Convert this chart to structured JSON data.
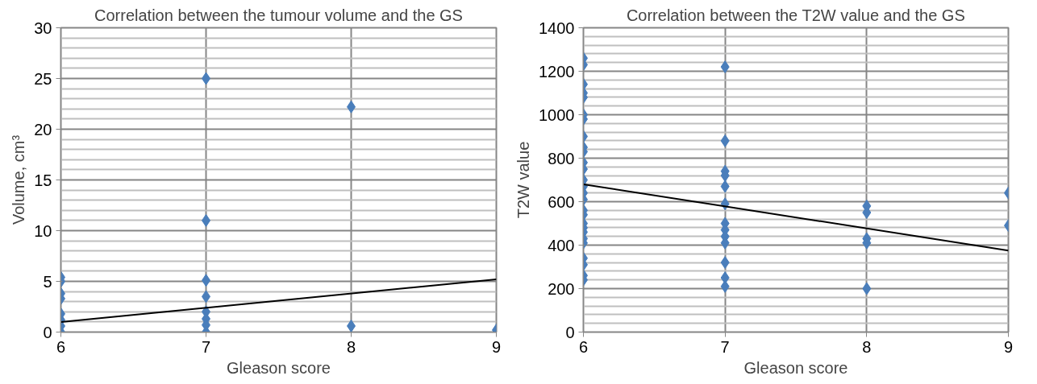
{
  "chart_data": [
    {
      "type": "scatter",
      "title": "Correlation between the tumour volume and the GS",
      "xlabel": "Gleason score",
      "ylabel": "Volume, cm³",
      "xlim": [
        6,
        9
      ],
      "xticks": [
        6,
        7,
        8,
        9
      ],
      "ylim": [
        0,
        30
      ],
      "yticks": [
        0,
        5,
        10,
        15,
        20,
        25,
        30
      ],
      "grid": true,
      "marker": "diamond",
      "series": [
        {
          "color": "#4a7ebb",
          "x": [
            6,
            6,
            6,
            6,
            6,
            6,
            6,
            6,
            7,
            7,
            7,
            7,
            7,
            7,
            7,
            7,
            8,
            8,
            9
          ],
          "values": [
            5.4,
            5.0,
            3.8,
            3.3,
            1.8,
            1.2,
            0.6,
            0,
            25,
            11,
            5.1,
            3.5,
            2.0,
            1.3,
            0.7,
            0,
            22.2,
            0.6,
            0.2
          ]
        },
        {
          "type": "line",
          "marker": "none",
          "color": "#000000",
          "x": [
            6,
            9
          ],
          "values": [
            1.0,
            5.2
          ]
        }
      ]
    },
    {
      "type": "scatter",
      "title": "Correlation between the T2W value and the GS",
      "xlabel": "Gleason score",
      "ylabel": "T2W value",
      "xlim": [
        6,
        9
      ],
      "xticks": [
        6,
        7,
        8,
        9
      ],
      "ylim": [
        0,
        1400
      ],
      "yticks": [
        0,
        200,
        400,
        600,
        800,
        1000,
        1200,
        1400
      ],
      "grid": true,
      "marker": "diamond",
      "series": [
        {
          "color": "#4a7ebb",
          "x": [
            6,
            6,
            6,
            6,
            6,
            6,
            6,
            6,
            6,
            6,
            6,
            6,
            6,
            6,
            6,
            6,
            6,
            6,
            6,
            6,
            6,
            6,
            6,
            6,
            6,
            6,
            6,
            7,
            7,
            7,
            7,
            7,
            7,
            7,
            7,
            7,
            7,
            7,
            7,
            7,
            8,
            8,
            8,
            8,
            8,
            9,
            9
          ],
          "values": [
            1260,
            1230,
            1140,
            1100,
            1080,
            1000,
            980,
            900,
            850,
            830,
            780,
            750,
            700,
            670,
            640,
            610,
            560,
            540,
            500,
            480,
            460,
            430,
            410,
            340,
            310,
            260,
            240,
            1220,
            880,
            740,
            720,
            670,
            590,
            500,
            470,
            440,
            410,
            320,
            250,
            210,
            580,
            550,
            430,
            410,
            200,
            640,
            490
          ]
        },
        {
          "type": "line",
          "marker": "none",
          "color": "#000000",
          "x": [
            6,
            9
          ],
          "values": [
            680,
            375
          ]
        }
      ]
    }
  ]
}
